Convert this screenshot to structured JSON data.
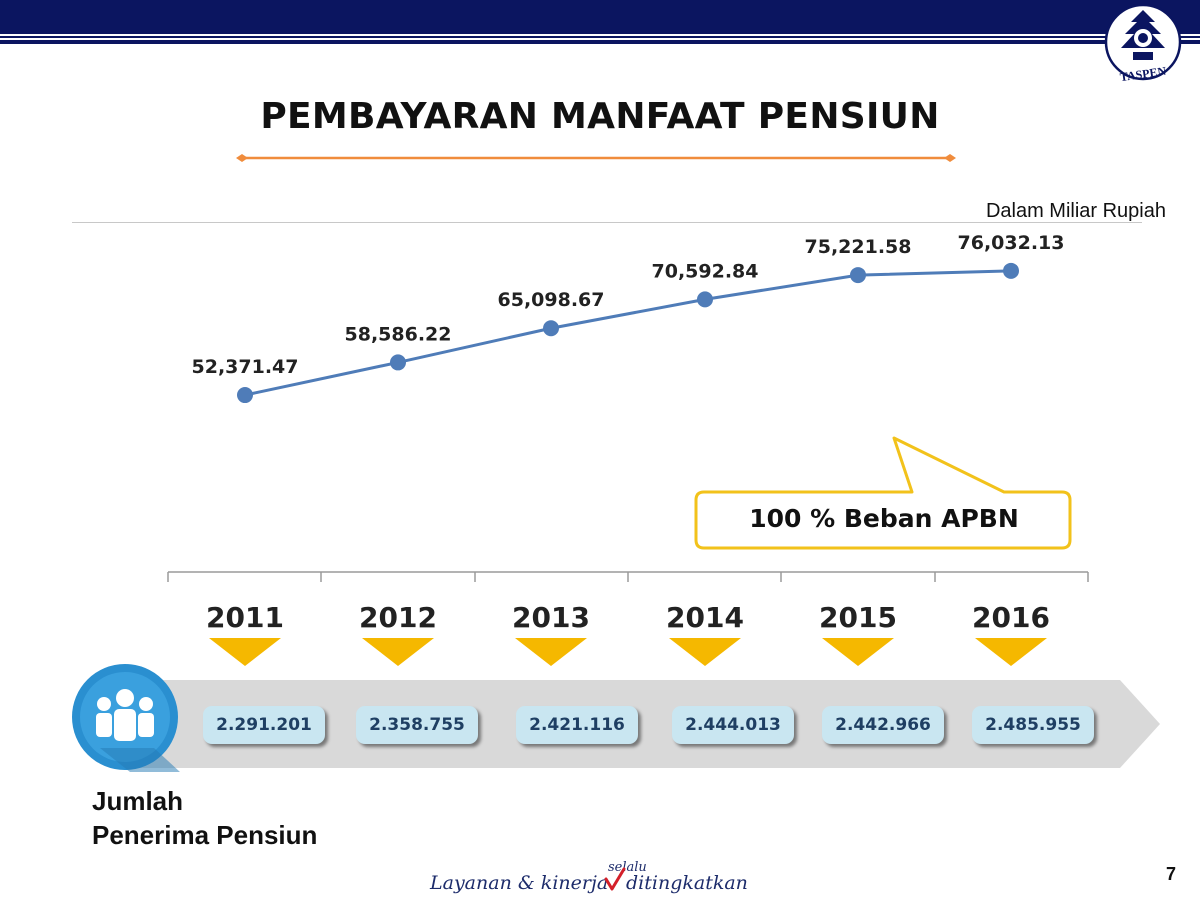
{
  "header": {
    "logo_text": "TASPEN",
    "colors": {
      "band": "#0b1560",
      "accent_line": "#0b1560"
    }
  },
  "title": "PEMBAYARAN MANFAAT PENSIUN",
  "unit_note": "Dalam Miliar Rupiah",
  "callout": {
    "text": "100 % Beban APBN",
    "border_color": "#f2c21b"
  },
  "recipients_label": {
    "line1": "Jumlah",
    "line2": "Penerima Pensiun"
  },
  "slogan": "Layanan & kinerja selalu ditingkatkan",
  "page_number": "7",
  "icons": {
    "recipients": "people-group-icon",
    "year_marker": "triangle-down-icon"
  },
  "chart_data": [
    {
      "type": "line",
      "x": [
        "2011",
        "2012",
        "2013",
        "2014",
        "2015",
        "2016"
      ],
      "series": [
        {
          "values": [
            52371.47,
            58586.22,
            65098.67,
            70592.84,
            75221.58,
            76032.13
          ]
        }
      ],
      "data_labels": [
        "52,371.47",
        "58,586.22",
        "65,098.67",
        "70,592.84",
        "75,221.58",
        "76,032.13"
      ],
      "ylim": [
        40000,
        80000
      ],
      "grid": false,
      "line_color": "#4f7cb8"
    },
    {
      "type": "table",
      "categories": [
        "2011",
        "2012",
        "2013",
        "2014",
        "2015",
        "2016"
      ],
      "values": [
        2291201,
        2358755,
        2421116,
        2444013,
        2442966,
        2485955
      ],
      "value_labels": [
        "2.291.201",
        "2.358.755",
        "2.421.116",
        "2.444.013",
        "2.442.966",
        "2.485.955"
      ],
      "marker_color": "#f5b800"
    }
  ]
}
